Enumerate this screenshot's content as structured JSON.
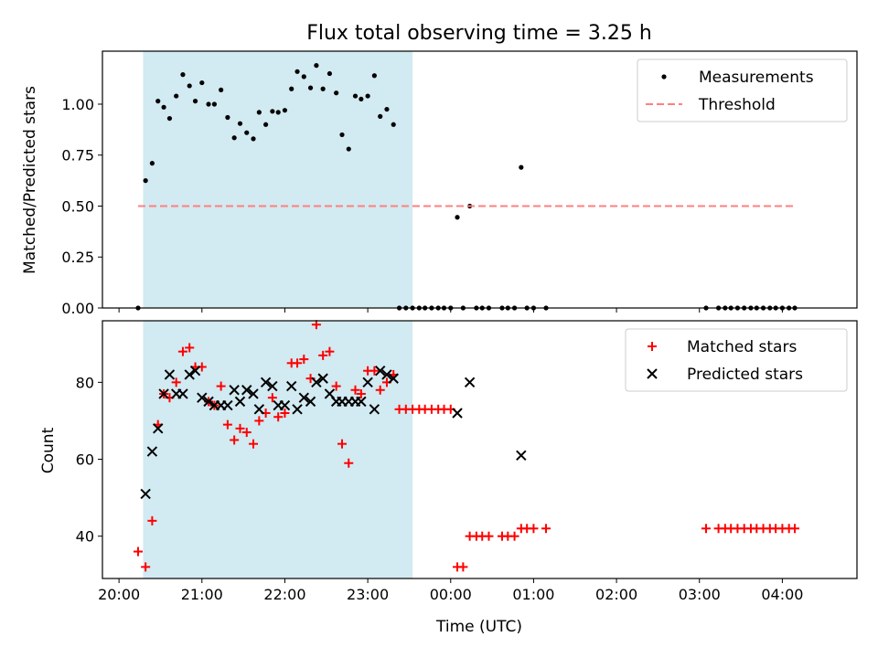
{
  "title": "Flux total observing time = 3.25 h",
  "chart_data": [
    {
      "type": "scatter",
      "ylabel": "Matched/Predicted stars",
      "xlabel": "",
      "x_unit": "hours since 20:00 UTC",
      "xlim": [
        -0.2,
        8.9
      ],
      "ylim": [
        0,
        1.26
      ],
      "yticks": [
        0.0,
        0.25,
        0.5,
        0.75,
        1.0
      ],
      "ytick_labels": [
        "0.00",
        "0.25",
        "0.50",
        "0.75",
        "1.00"
      ],
      "shaded_interval": [
        0.29,
        3.54
      ],
      "shade_color": "#add8e6",
      "legend_position": "upper right",
      "series": [
        {
          "name": "Measurements",
          "marker": "dot",
          "color": "#000000",
          "points": [
            [
              0.23,
              0
            ],
            [
              0.32,
              0.625
            ],
            [
              0.4,
              0.71
            ],
            [
              0.47,
              1.015
            ],
            [
              0.54,
              0.985
            ],
            [
              0.61,
              0.93
            ],
            [
              0.69,
              1.04
            ],
            [
              0.77,
              1.145
            ],
            [
              0.85,
              1.09
            ],
            [
              0.92,
              1.015
            ],
            [
              1.0,
              1.105
            ],
            [
              1.08,
              1.0
            ],
            [
              1.15,
              1.0
            ],
            [
              1.23,
              1.07
            ],
            [
              1.31,
              0.935
            ],
            [
              1.39,
              0.835
            ],
            [
              1.46,
              0.905
            ],
            [
              1.54,
              0.86
            ],
            [
              1.62,
              0.83
            ],
            [
              1.69,
              0.96
            ],
            [
              1.77,
              0.9
            ],
            [
              1.85,
              0.965
            ],
            [
              1.92,
              0.96
            ],
            [
              2.0,
              0.97
            ],
            [
              2.08,
              1.075
            ],
            [
              2.15,
              1.16
            ],
            [
              2.23,
              1.135
            ],
            [
              2.31,
              1.08
            ],
            [
              2.38,
              1.19
            ],
            [
              2.46,
              1.075
            ],
            [
              2.54,
              1.15
            ],
            [
              2.62,
              1.055
            ],
            [
              2.69,
              0.85
            ],
            [
              2.77,
              0.78
            ],
            [
              2.85,
              1.04
            ],
            [
              2.92,
              1.025
            ],
            [
              3.0,
              1.04
            ],
            [
              3.08,
              1.14
            ],
            [
              3.15,
              0.94
            ],
            [
              3.23,
              0.975
            ],
            [
              3.31,
              0.9
            ],
            [
              3.38,
              0
            ],
            [
              3.46,
              0
            ],
            [
              3.54,
              0
            ],
            [
              3.62,
              0
            ],
            [
              3.69,
              0
            ],
            [
              3.77,
              0
            ],
            [
              3.85,
              0
            ],
            [
              3.92,
              0
            ],
            [
              4.0,
              0
            ],
            [
              4.08,
              0.445
            ],
            [
              4.15,
              0
            ],
            [
              4.23,
              0.5
            ],
            [
              4.31,
              0
            ],
            [
              4.38,
              0
            ],
            [
              4.46,
              0
            ],
            [
              4.62,
              0
            ],
            [
              4.69,
              0
            ],
            [
              4.77,
              0
            ],
            [
              4.85,
              0.69
            ],
            [
              4.92,
              0
            ],
            [
              5.0,
              0
            ],
            [
              5.15,
              0
            ],
            [
              7.08,
              0
            ],
            [
              7.23,
              0
            ],
            [
              7.31,
              0
            ],
            [
              7.38,
              0
            ],
            [
              7.46,
              0
            ],
            [
              7.54,
              0
            ],
            [
              7.62,
              0
            ],
            [
              7.69,
              0
            ],
            [
              7.77,
              0
            ],
            [
              7.85,
              0
            ],
            [
              7.92,
              0
            ],
            [
              8.0,
              0
            ],
            [
              8.08,
              0
            ],
            [
              8.15,
              0
            ]
          ]
        },
        {
          "name": "Threshold",
          "line_style": "dashed",
          "color": "#ff7f7f",
          "x": [
            0.23,
            8.15
          ],
          "y": [
            0.5,
            0.5
          ]
        }
      ]
    },
    {
      "type": "scatter",
      "ylabel": "Count",
      "xlabel": "Time (UTC)",
      "x_unit": "hours since 20:00 UTC",
      "xlim": [
        -0.2,
        8.9
      ],
      "ylim": [
        29,
        96
      ],
      "yticks": [
        40,
        60,
        80
      ],
      "ytick_labels": [
        "40",
        "60",
        "80"
      ],
      "xticks": [
        0,
        1,
        2,
        3,
        4,
        5,
        6,
        7,
        8
      ],
      "xtick_labels": [
        "20:00",
        "21:00",
        "22:00",
        "23:00",
        "00:00",
        "01:00",
        "02:00",
        "03:00",
        "04:00"
      ],
      "shaded_interval": [
        0.29,
        3.54
      ],
      "shade_color": "#add8e6",
      "legend_position": "upper right",
      "series": [
        {
          "name": "Matched stars",
          "marker": "plus",
          "color": "#ff0000",
          "points": [
            [
              0.23,
              36
            ],
            [
              0.32,
              32
            ],
            [
              0.4,
              44
            ],
            [
              0.47,
              69
            ],
            [
              0.54,
              77
            ],
            [
              0.61,
              76
            ],
            [
              0.69,
              80
            ],
            [
              0.77,
              88
            ],
            [
              0.85,
              89
            ],
            [
              0.92,
              84
            ],
            [
              1.0,
              84
            ],
            [
              1.08,
              75
            ],
            [
              1.15,
              74
            ],
            [
              1.23,
              79
            ],
            [
              1.31,
              69
            ],
            [
              1.39,
              65
            ],
            [
              1.46,
              68
            ],
            [
              1.54,
              67
            ],
            [
              1.62,
              64
            ],
            [
              1.69,
              70
            ],
            [
              1.77,
              72
            ],
            [
              1.85,
              76
            ],
            [
              1.92,
              71
            ],
            [
              2.0,
              72
            ],
            [
              2.08,
              85
            ],
            [
              2.15,
              85
            ],
            [
              2.23,
              86
            ],
            [
              2.31,
              81
            ],
            [
              2.38,
              95
            ],
            [
              2.46,
              87
            ],
            [
              2.54,
              88
            ],
            [
              2.62,
              79
            ],
            [
              2.69,
              64
            ],
            [
              2.77,
              59
            ],
            [
              2.85,
              78
            ],
            [
              2.92,
              77
            ],
            [
              3.0,
              83
            ],
            [
              3.08,
              83
            ],
            [
              3.15,
              78
            ],
            [
              3.23,
              80
            ],
            [
              3.31,
              82
            ],
            [
              3.38,
              73
            ],
            [
              3.46,
              73
            ],
            [
              3.54,
              73
            ],
            [
              3.62,
              73
            ],
            [
              3.69,
              73
            ],
            [
              3.77,
              73
            ],
            [
              3.85,
              73
            ],
            [
              3.92,
              73
            ],
            [
              4.0,
              73
            ],
            [
              4.08,
              32
            ],
            [
              4.15,
              32
            ],
            [
              4.23,
              40
            ],
            [
              4.31,
              40
            ],
            [
              4.38,
              40
            ],
            [
              4.46,
              40
            ],
            [
              4.62,
              40
            ],
            [
              4.69,
              40
            ],
            [
              4.77,
              40
            ],
            [
              4.85,
              42
            ],
            [
              4.92,
              42
            ],
            [
              5.0,
              42
            ],
            [
              5.15,
              42
            ],
            [
              7.08,
              42
            ],
            [
              7.23,
              42
            ],
            [
              7.31,
              42
            ],
            [
              7.38,
              42
            ],
            [
              7.46,
              42
            ],
            [
              7.54,
              42
            ],
            [
              7.62,
              42
            ],
            [
              7.69,
              42
            ],
            [
              7.77,
              42
            ],
            [
              7.85,
              42
            ],
            [
              7.92,
              42
            ],
            [
              8.0,
              42
            ],
            [
              8.08,
              42
            ],
            [
              8.15,
              42
            ]
          ]
        },
        {
          "name": "Predicted stars",
          "marker": "x",
          "color": "#000000",
          "points": [
            [
              0.32,
              51
            ],
            [
              0.4,
              62
            ],
            [
              0.47,
              68
            ],
            [
              0.54,
              77
            ],
            [
              0.61,
              82
            ],
            [
              0.69,
              77
            ],
            [
              0.77,
              77
            ],
            [
              0.85,
              82
            ],
            [
              0.92,
              83
            ],
            [
              1.0,
              76
            ],
            [
              1.08,
              75
            ],
            [
              1.15,
              74
            ],
            [
              1.23,
              74
            ],
            [
              1.31,
              74
            ],
            [
              1.39,
              78
            ],
            [
              1.46,
              75
            ],
            [
              1.54,
              78
            ],
            [
              1.62,
              77
            ],
            [
              1.69,
              73
            ],
            [
              1.77,
              80
            ],
            [
              1.85,
              79
            ],
            [
              1.92,
              74
            ],
            [
              2.0,
              74
            ],
            [
              2.08,
              79
            ],
            [
              2.15,
              73
            ],
            [
              2.23,
              76
            ],
            [
              2.31,
              75
            ],
            [
              2.38,
              80
            ],
            [
              2.46,
              81
            ],
            [
              2.54,
              77
            ],
            [
              2.62,
              75
            ],
            [
              2.69,
              75
            ],
            [
              2.77,
              75
            ],
            [
              2.85,
              75
            ],
            [
              2.92,
              75
            ],
            [
              3.0,
              80
            ],
            [
              3.08,
              73
            ],
            [
              3.15,
              83
            ],
            [
              3.23,
              82
            ],
            [
              3.31,
              81
            ],
            [
              4.08,
              72
            ],
            [
              4.23,
              80
            ],
            [
              4.85,
              61
            ]
          ]
        }
      ]
    }
  ]
}
